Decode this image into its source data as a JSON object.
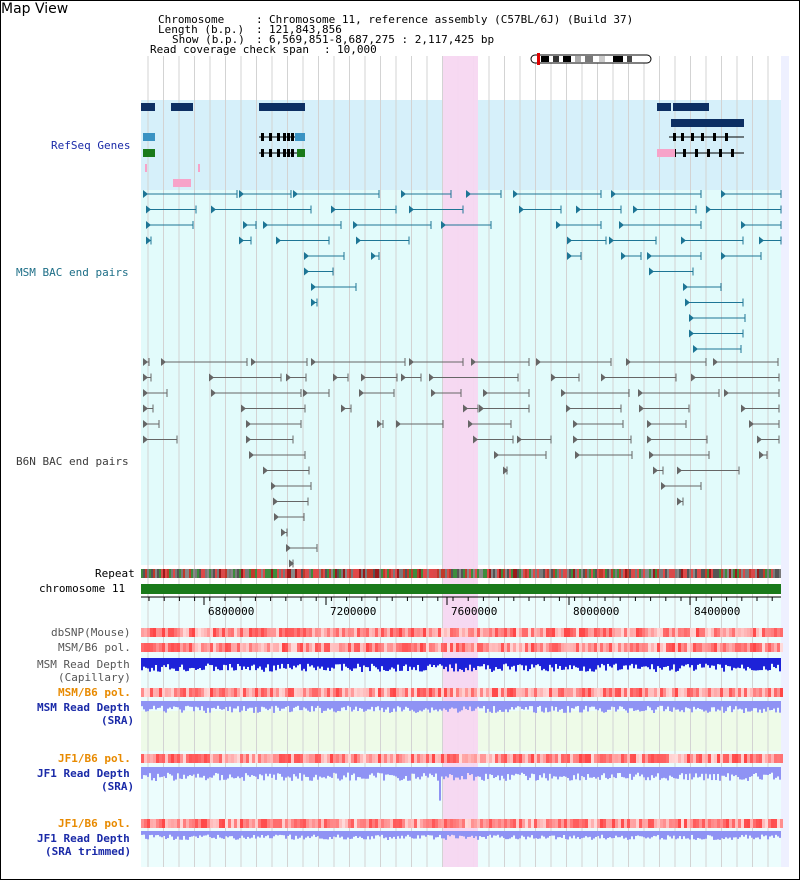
{
  "page": {
    "title": "Map View"
  },
  "header": {
    "chromosome_label": "Chromosome",
    "chromosome_value": "Chromosome 11, reference assembly (C57BL/6J) (Build 37)",
    "length_label": "Length (b.p.)",
    "length_value": "121,843,856",
    "show_label": "Show (b.p.)",
    "show_value": "6,569,851-8,687,275 : 2,117,425 bp",
    "coverage_label": "Read coverage check span",
    "coverage_value": "10,000"
  },
  "tracks": {
    "refseq": "RefSeq Genes",
    "msm_bac": "MSM BAC end pairs",
    "b6n_bac": "B6N BAC end pairs",
    "repeat": "Repeat",
    "chromosome": "chromosome 11",
    "dbsnp": "dbSNP(Mouse)",
    "msm_b6_pol": "MSM/B6 pol.",
    "msm_read_depth_cap_1": "MSM Read Depth",
    "msm_read_depth_cap_2": "(Capillary)",
    "msm_b6_pol_2": "MSM/B6 pol.",
    "msm_read_depth_sra_1": "MSM Read Depth",
    "msm_read_depth_sra_2": "(SRA)",
    "jf1_b6_pol": "JF1/B6 pol.",
    "jf1_read_depth_1": "JF1 Read Depth",
    "jf1_read_depth_2": "(SRA)",
    "jf1_b6_pol_2": "JF1/B6 pol.",
    "jf1_read_depth_trim_1": "JF1 Read Depth",
    "jf1_read_depth_trim_2": "(SRA trimmed)"
  },
  "axis": {
    "ticks": [
      "6800000",
      "7200000",
      "7600000",
      "8000000",
      "8400000"
    ]
  },
  "colors": {
    "refseq_bg": "#d6f0fa",
    "bac_bg": "#e2fbfb",
    "highlight": "#f7d7f1",
    "gene_dark": "#0d2f63",
    "msm_pair": "#1d7595",
    "b6n_pair": "#666666",
    "chromosome_bar": "#1a7a1a",
    "msm_label": "#1d6e87",
    "b6n_label": "#3b3b3b",
    "orange_label": "#e88a00",
    "blue_label": "#1a2aa8",
    "depth_blue": "#1d22d8",
    "depth_light": "#8f93f4"
  }
}
